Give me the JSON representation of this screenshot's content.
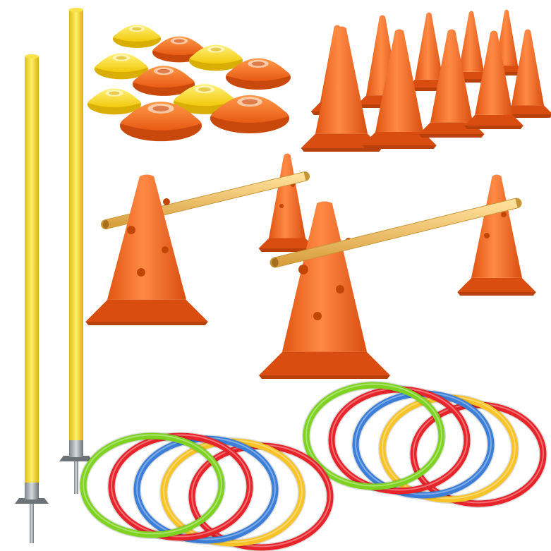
{
  "scene": {
    "background": "#ffffff"
  },
  "colors": {
    "cone": "#f26a1f",
    "cone_dark": "#d94e10",
    "cone_light": "#ff8a45",
    "disc_yellow": "#fde02a",
    "disc_orange": "#f47a24",
    "pole": "#f6d21a",
    "pole_dark": "#d9b010",
    "bar": "#f0c05a",
    "bar_dark": "#c89535",
    "metal": "#9aa3ab",
    "metal_dark": "#6b7379",
    "ring_green": "#7ed321",
    "ring_red": "#e8242b",
    "ring_blue": "#3b7fd9",
    "ring_yellow": "#f7c325"
  },
  "objects": {
    "marker_discs": {
      "icon": "marker-disc-icon",
      "colors": [
        "yellow",
        "orange"
      ]
    },
    "traffic_cones": {
      "icon": "traffic-cone-icon"
    },
    "hurdle_sets": {
      "icon": "cone-hurdle-icon"
    },
    "slalom_poles": {
      "icon": "slalom-pole-icon"
    },
    "agility_rings": {
      "icon": "agility-ring-icon",
      "colors": [
        "green",
        "red",
        "blue",
        "yellow"
      ]
    }
  }
}
